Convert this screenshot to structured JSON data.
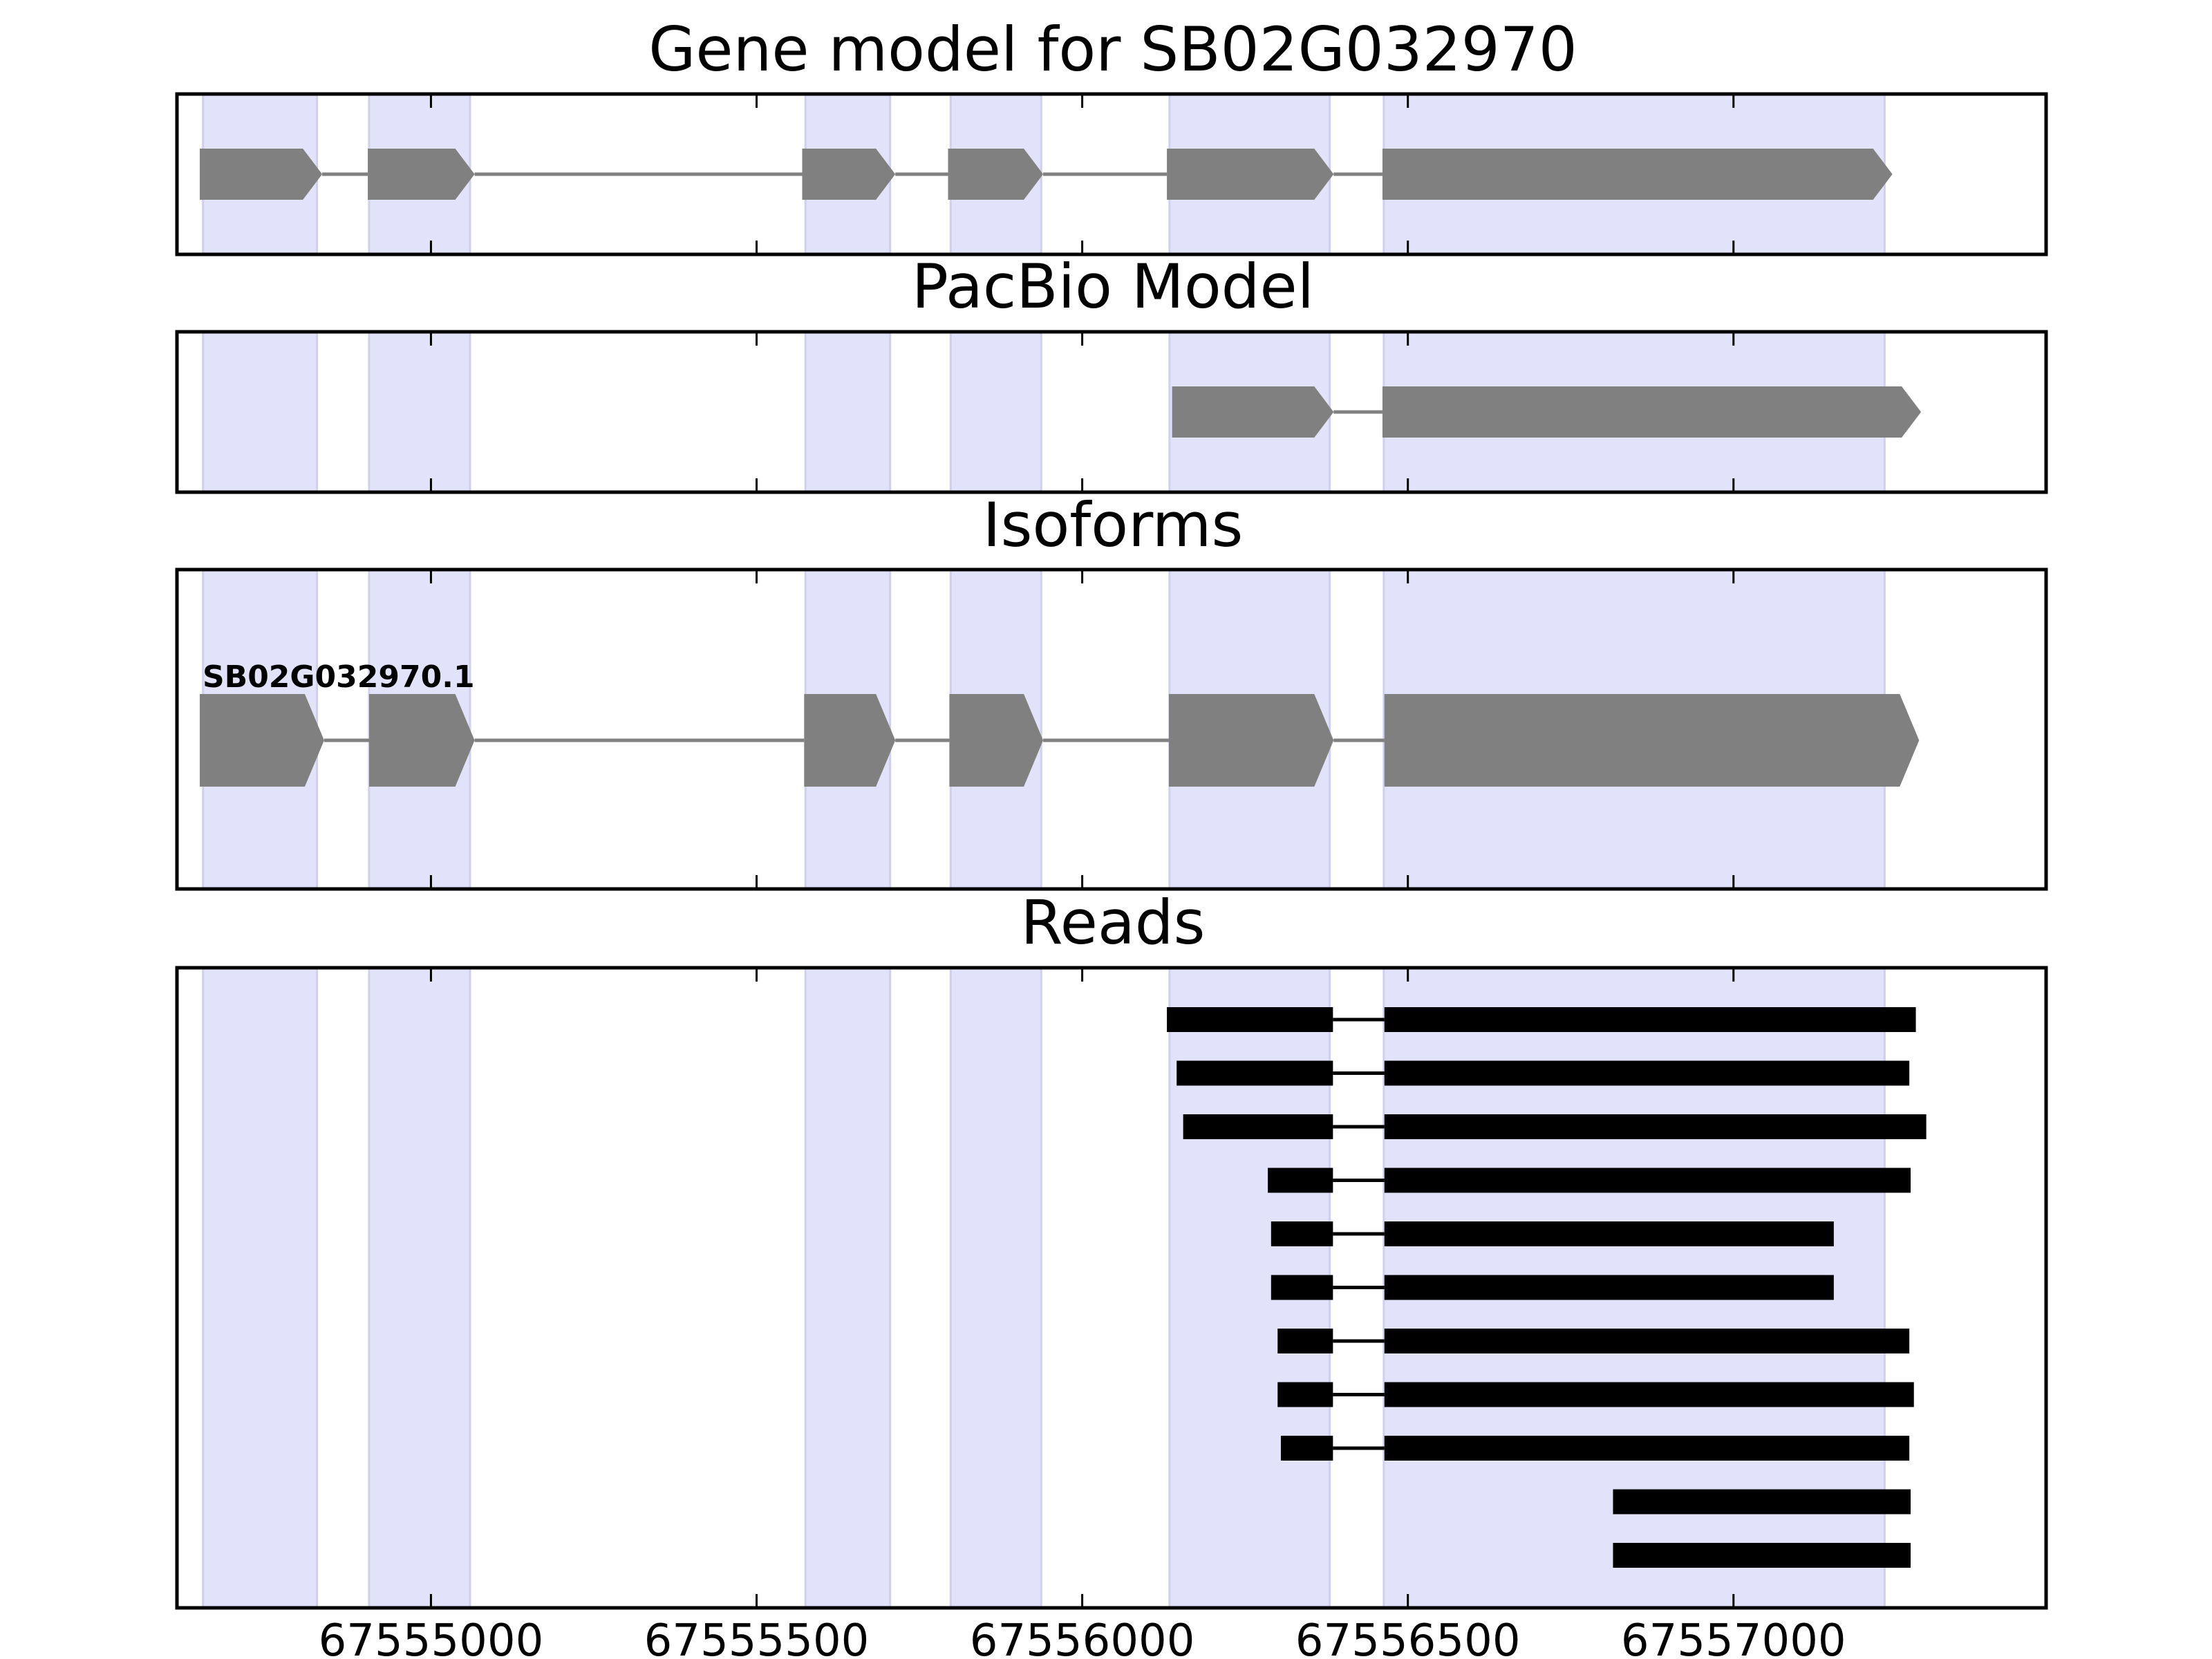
{
  "chart_data": {
    "type": "gene-structure",
    "x_axis": {
      "range": [
        67554610,
        67557480
      ],
      "ticks": [
        67555000,
        67555500,
        67556000,
        67556500,
        67557000
      ],
      "tick_labels": [
        "67555000",
        "67555500",
        "67556000",
        "67556500",
        "67557000"
      ]
    },
    "highlight_color": "#e2e2fb",
    "feature_color": "#808080",
    "read_color": "#000000",
    "exon_regions": [
      [
        67554650,
        67554825
      ],
      [
        67554905,
        67555060
      ],
      [
        67555575,
        67555705
      ],
      [
        67555798,
        67555937
      ],
      [
        67556134,
        67556380
      ],
      [
        67556463,
        67557232
      ]
    ],
    "panels": [
      {
        "title": "Gene model for SB02G032970",
        "kind": "gene_model",
        "exons": [
          [
            67554645,
            67554833
          ],
          [
            67554903,
            67555067
          ],
          [
            67555570,
            67555713
          ],
          [
            67555794,
            67555940
          ],
          [
            67556130,
            67556386
          ],
          [
            67556461,
            67557244
          ]
        ]
      },
      {
        "title": "PacBio Model",
        "kind": "gene_model",
        "exons": [
          [
            67556138,
            67556386
          ],
          [
            67556461,
            67557288
          ]
        ]
      },
      {
        "title": "Isoforms",
        "kind": "isoform",
        "isoforms": [
          {
            "name": "SB02G032970.1",
            "exons": [
              [
                67554645,
                67554836
              ],
              [
                67554905,
                67555067
              ],
              [
                67555573,
                67555713
              ],
              [
                67555796,
                67555940
              ],
              [
                67556133,
                67556386
              ],
              [
                67556464,
                67557285
              ]
            ]
          }
        ]
      },
      {
        "title": "Reads",
        "kind": "reads",
        "reads": [
          [
            [
              67556130,
              67556385
            ],
            [
              67556464,
              67557280
            ]
          ],
          [
            [
              67556145,
              67556385
            ],
            [
              67556464,
              67557270
            ]
          ],
          [
            [
              67556155,
              67556385
            ],
            [
              67556464,
              67557296
            ]
          ],
          [
            [
              67556285,
              67556385
            ],
            [
              67556464,
              67557272
            ]
          ],
          [
            [
              67556290,
              67556385
            ],
            [
              67556464,
              67557154
            ]
          ],
          [
            [
              67556290,
              67556385
            ],
            [
              67556464,
              67557154
            ]
          ],
          [
            [
              67556300,
              67556385
            ],
            [
              67556464,
              67557270
            ]
          ],
          [
            [
              67556300,
              67556385
            ],
            [
              67556464,
              67557277
            ]
          ],
          [
            [
              67556305,
              67556385
            ],
            [
              67556464,
              67557270
            ]
          ],
          [
            [
              67556815,
              67557272
            ]
          ],
          [
            [
              67556815,
              67557272
            ]
          ]
        ]
      }
    ]
  }
}
